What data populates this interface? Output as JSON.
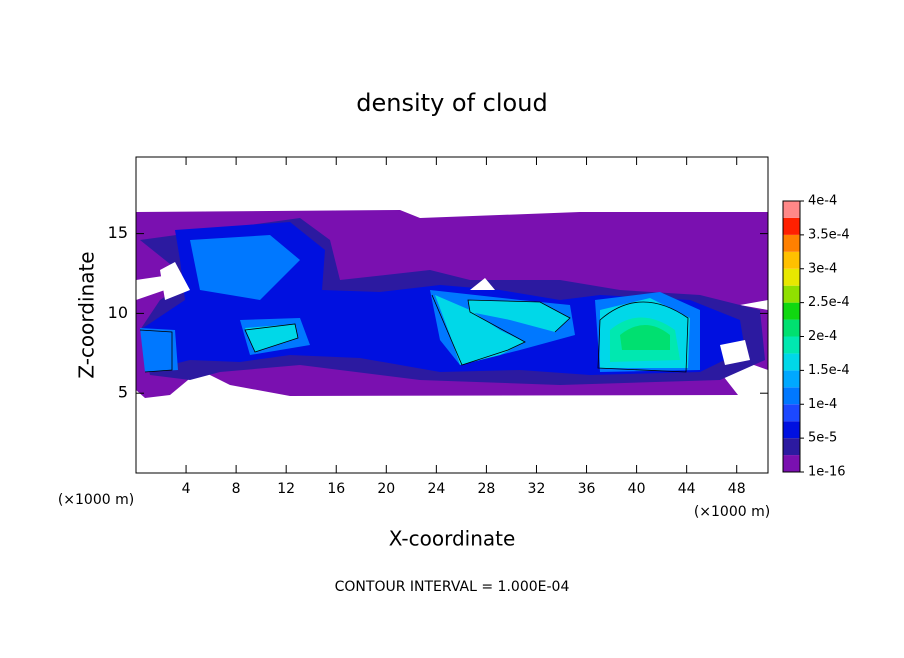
{
  "chart_data": {
    "type": "contour",
    "title": "density of cloud",
    "x_label": "X-coordinate",
    "y_label": "Z-coordinate",
    "x_unit": "(×1000 m)",
    "y_unit": "(×1000 m)",
    "footer": "CONTOUR INTERVAL = 1.000E-04",
    "xlim": [
      0,
      50.5
    ],
    "ylim": [
      0,
      19.8
    ],
    "xticks": [
      4,
      8,
      12,
      16,
      20,
      24,
      28,
      32,
      36,
      40,
      44,
      48
    ],
    "yticks": [
      5,
      10,
      15
    ],
    "colorbar": {
      "levels": [
        1e-16,
        2.5e-05,
        5e-05,
        7.5e-05,
        0.0001,
        0.000125,
        0.00015,
        0.000175,
        0.0002,
        0.000225,
        0.00025,
        0.000275,
        0.0003,
        0.000325,
        0.00035,
        0.000375,
        0.0004
      ],
      "colors": [
        "#7a10b0",
        "#2c1aa0",
        "#0010e0",
        "#1c48ff",
        "#0078ff",
        "#00a8ff",
        "#00d8e8",
        "#00e8b0",
        "#00e070",
        "#10d810",
        "#90e000",
        "#e8e800",
        "#ffc000",
        "#ff8000",
        "#ff2000",
        "#ff8888"
      ],
      "ticks": [
        {
          "value": 1e-16,
          "label": "1e-16"
        },
        {
          "value": 5e-05,
          "label": "5e-5"
        },
        {
          "value": 0.0001,
          "label": "1e-4"
        },
        {
          "value": 0.00015,
          "label": "1.5e-4"
        },
        {
          "value": 0.0002,
          "label": "2e-4"
        },
        {
          "value": 0.00025,
          "label": "2.5e-4"
        },
        {
          "value": 0.0003,
          "label": "3e-4"
        },
        {
          "value": 0.00035,
          "label": "3.5e-4"
        },
        {
          "value": 0.0004,
          "label": "4e-4"
        }
      ]
    }
  }
}
